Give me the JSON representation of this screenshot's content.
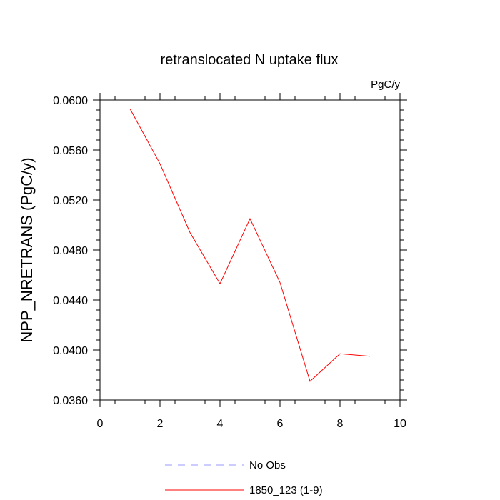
{
  "chart_data": {
    "type": "line",
    "title": "retranslocated N uptake flux",
    "units_label": "PgC/y",
    "xlabel": "",
    "ylabel": "NPP_NRETRANS  (PgC/y)",
    "xlim": [
      0,
      10
    ],
    "ylim": [
      0.036,
      0.06
    ],
    "xticks": [
      0,
      2,
      4,
      6,
      8,
      10
    ],
    "xtick_labels": [
      "0",
      "2",
      "4",
      "6",
      "8",
      "10"
    ],
    "yticks": [
      0.036,
      0.04,
      0.044,
      0.048,
      0.052,
      0.056,
      0.06
    ],
    "ytick_labels": [
      "0.0360",
      "0.0400",
      "0.0440",
      "0.0480",
      "0.0520",
      "0.0560",
      "0.0600"
    ],
    "grid": false,
    "legend_position": "bottom",
    "series": [
      {
        "name": "1850_123 (1-9)",
        "color": "#ff0000",
        "x": [
          1,
          2,
          3,
          4,
          5,
          6,
          7,
          8,
          9
        ],
        "y": [
          0.0593,
          0.0549,
          0.0494,
          0.0453,
          0.0505,
          0.0454,
          0.0375,
          0.0397,
          0.0395
        ]
      }
    ],
    "legend": [
      {
        "label": "No Obs",
        "color": "#9999ff",
        "dashed": true
      },
      {
        "label": "1850_123 (1-9)",
        "color": "#ff0000",
        "dashed": false
      }
    ]
  }
}
